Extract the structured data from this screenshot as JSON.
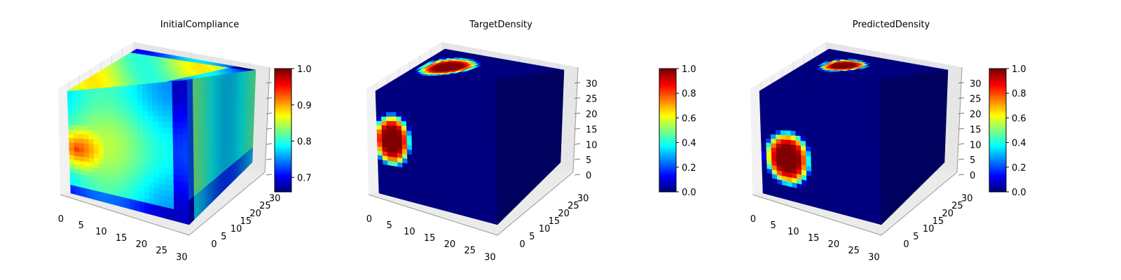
{
  "colors": {
    "jet": [
      "#00007f",
      "#0000ff",
      "#007fff",
      "#00ffff",
      "#7fff7f",
      "#ffff00",
      "#ff7f00",
      "#ff0000",
      "#7f0000"
    ],
    "pane_left": "#f2f2f2",
    "pane_right": "#e6e6e6",
    "pane_floor": "#ebebeb",
    "grid": "#d6d6d6",
    "background": "#ffffff"
  },
  "chart_data": [
    {
      "type": "heatmap",
      "subtype": "3d-voxel",
      "title": "InitialCompliance",
      "x_ticks": [
        "0",
        "5",
        "10",
        "15",
        "20",
        "25",
        "30"
      ],
      "y_ticks": [
        "0",
        "5",
        "10",
        "15",
        "20",
        "25",
        "30"
      ],
      "z_ticks": [
        "",
        "",
        "",
        "",
        "",
        "",
        ""
      ],
      "zlim": [
        0,
        32
      ],
      "grid_size": 32,
      "colorbar": {
        "ticks": [
          "0.7",
          "0.8",
          "0.9",
          "1.0"
        ],
        "tick_values": [
          0.7,
          0.8,
          0.9,
          1.0
        ],
        "range": [
          0.66,
          1.0
        ]
      },
      "value_range": [
        0.66,
        1.0
      ],
      "faces": {
        "front_base": 0.8,
        "front_hotspot": {
          "center": [
            2,
            14
          ],
          "radius": 4,
          "peak": 0.91
        },
        "front_edge_low": 0.7,
        "top_base": 0.84,
        "side_base": 0.8
      }
    },
    {
      "type": "heatmap",
      "subtype": "3d-voxel",
      "title": "TargetDensity",
      "x_ticks": [
        "0",
        "5",
        "10",
        "15",
        "20",
        "25",
        "30"
      ],
      "y_ticks": [
        "0",
        "5",
        "10",
        "15",
        "20",
        "25",
        "30"
      ],
      "z_ticks": [
        "0",
        "5",
        "10",
        "15",
        "20",
        "25",
        "30"
      ],
      "zlim": [
        0,
        32
      ],
      "grid_size": 32,
      "colorbar": {
        "ticks": [
          "0.0",
          "0.2",
          "0.4",
          "0.6",
          "0.8",
          "1.0"
        ],
        "tick_values": [
          0.0,
          0.2,
          0.4,
          0.6,
          0.8,
          1.0
        ],
        "range": [
          0.0,
          1.0
        ]
      },
      "value_range": [
        0.0,
        1.0
      ],
      "faces": {
        "front_blob": {
          "center": [
            4,
            17
          ],
          "radius": [
            4.5,
            7
          ],
          "peak": 1.0
        },
        "top_blob": {
          "center": [
            8,
            20
          ],
          "radius": [
            6,
            7
          ],
          "peak": 1.0
        },
        "base": 0.0
      }
    },
    {
      "type": "heatmap",
      "subtype": "3d-voxel",
      "title": "PredictedDensity",
      "x_ticks": [
        "0",
        "5",
        "10",
        "15",
        "20",
        "25",
        "30"
      ],
      "y_ticks": [
        "0",
        "5",
        "10",
        "15",
        "20",
        "25",
        "30"
      ],
      "z_ticks": [
        "0",
        "5",
        "10",
        "15",
        "20",
        "25",
        "30"
      ],
      "zlim": [
        0,
        32
      ],
      "grid_size": 32,
      "colorbar": {
        "ticks": [
          "0.0",
          "0.2",
          "0.4",
          "0.6",
          "0.8",
          "1.0"
        ],
        "tick_values": [
          0.0,
          0.2,
          0.4,
          0.6,
          0.8,
          1.0
        ],
        "range": [
          0.0,
          1.0
        ]
      },
      "value_range": [
        0.0,
        1.0
      ],
      "faces": {
        "front_blob": {
          "center": [
            7,
            12
          ],
          "radius": [
            5.5,
            7
          ],
          "peak": 1.0
        },
        "top_blob": {
          "center": [
            10,
            22
          ],
          "radius": [
            5,
            5
          ],
          "peak": 1.0
        },
        "base": 0.0
      }
    }
  ]
}
